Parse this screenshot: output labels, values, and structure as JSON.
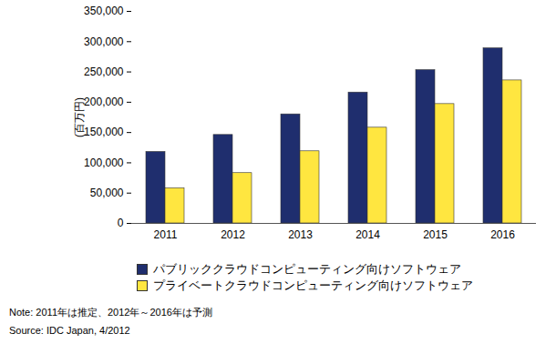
{
  "chart_data": {
    "type": "bar",
    "ylabel": "(百万円)",
    "categories": [
      "2011",
      "2012",
      "2013",
      "2014",
      "2015",
      "2016"
    ],
    "series": [
      {
        "name": "パブリッククラウドコンピューティング向けソフトウェア",
        "color": "#1f2e6e",
        "values": [
          118000,
          146000,
          180000,
          216000,
          253000,
          289000
        ]
      },
      {
        "name": "プライベートクラウドコンピューティング向けソフトウェア",
        "color": "#ffe640",
        "values": [
          58000,
          83000,
          119000,
          158000,
          197000,
          236000
        ]
      }
    ],
    "ylim": [
      0,
      350000
    ],
    "yticks": [
      0,
      {
        "value": 50000,
        "label": "50,000"
      },
      {
        "value": 100000,
        "label": "100,000"
      },
      {
        "value": 150000,
        "label": "150,000"
      },
      {
        "value": 200000,
        "label": "200,000"
      },
      {
        "value": 250000,
        "label": "250,000"
      },
      {
        "value": 300000,
        "label": "300,000"
      },
      {
        "value": 350000,
        "label": "350,000"
      }
    ],
    "grid": false,
    "legend": "bottom",
    "annotations": [
      "Note: 2011年は推定、2012年～2016年は予測",
      "Source: IDC Japan, 4/2012"
    ]
  }
}
